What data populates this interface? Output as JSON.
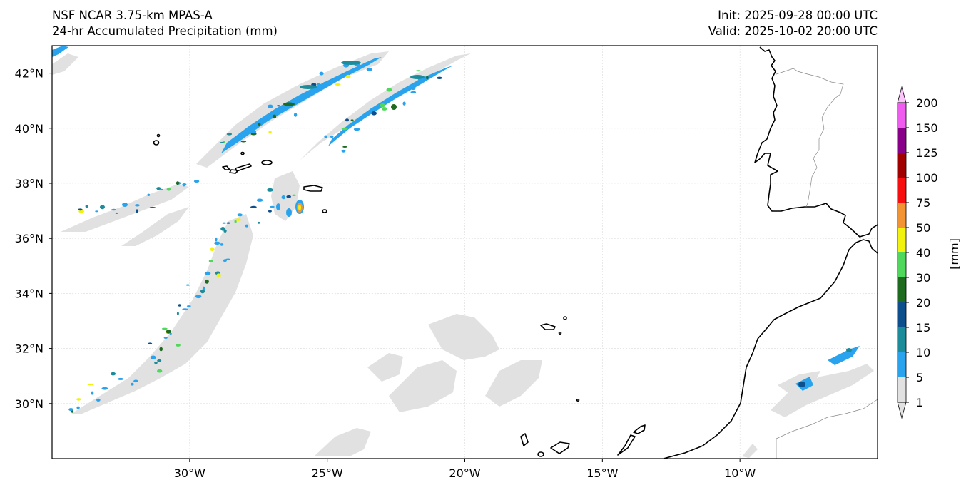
{
  "header": {
    "model": "NSF NCAR 3.75-km MPAS-A",
    "field": "24-hr Accumulated Precipitation (mm)",
    "init": "Init: 2025-09-28 00:00 UTC",
    "valid": "Valid: 2025-10-02 20:00 UTC"
  },
  "map": {
    "lon_range": [
      -35,
      -5
    ],
    "lat_range": [
      28,
      43
    ],
    "lon_ticks": [
      {
        "value": -30,
        "label": "30°W"
      },
      {
        "value": -25,
        "label": "25°W"
      },
      {
        "value": -20,
        "label": "20°W"
      },
      {
        "value": -15,
        "label": "15°W"
      },
      {
        "value": -10,
        "label": "10°W"
      }
    ],
    "lat_ticks": [
      {
        "value": 42,
        "label": "42°N"
      },
      {
        "value": 40,
        "label": "40°N"
      },
      {
        "value": 38,
        "label": "38°N"
      },
      {
        "value": 36,
        "label": "36°N"
      },
      {
        "value": 34,
        "label": "34°N"
      },
      {
        "value": 32,
        "label": "32°N"
      },
      {
        "value": 30,
        "label": "30°N"
      }
    ],
    "gridlines": true,
    "features": [
      "Iberian Peninsula",
      "Northwest Africa",
      "Azores",
      "Madeira",
      "Canary Islands"
    ]
  },
  "colorbar": {
    "unit_label": "[mm]",
    "levels": [
      1,
      5,
      10,
      15,
      20,
      30,
      40,
      50,
      75,
      100,
      125,
      150,
      200
    ],
    "labels": [
      "1",
      "5",
      "10",
      "15",
      "20",
      "30",
      "40",
      "50",
      "75",
      "100",
      "125",
      "150",
      "200"
    ],
    "colors": [
      "#e1e1e1",
      "#29a3ee",
      "#1c8c9b",
      "#0d4f8c",
      "#1e6a1e",
      "#4fd85c",
      "#f2f20f",
      "#f29433",
      "#f70f0f",
      "#a00000",
      "#880088",
      "#ef5cef",
      "#fbc5fb"
    ]
  }
}
